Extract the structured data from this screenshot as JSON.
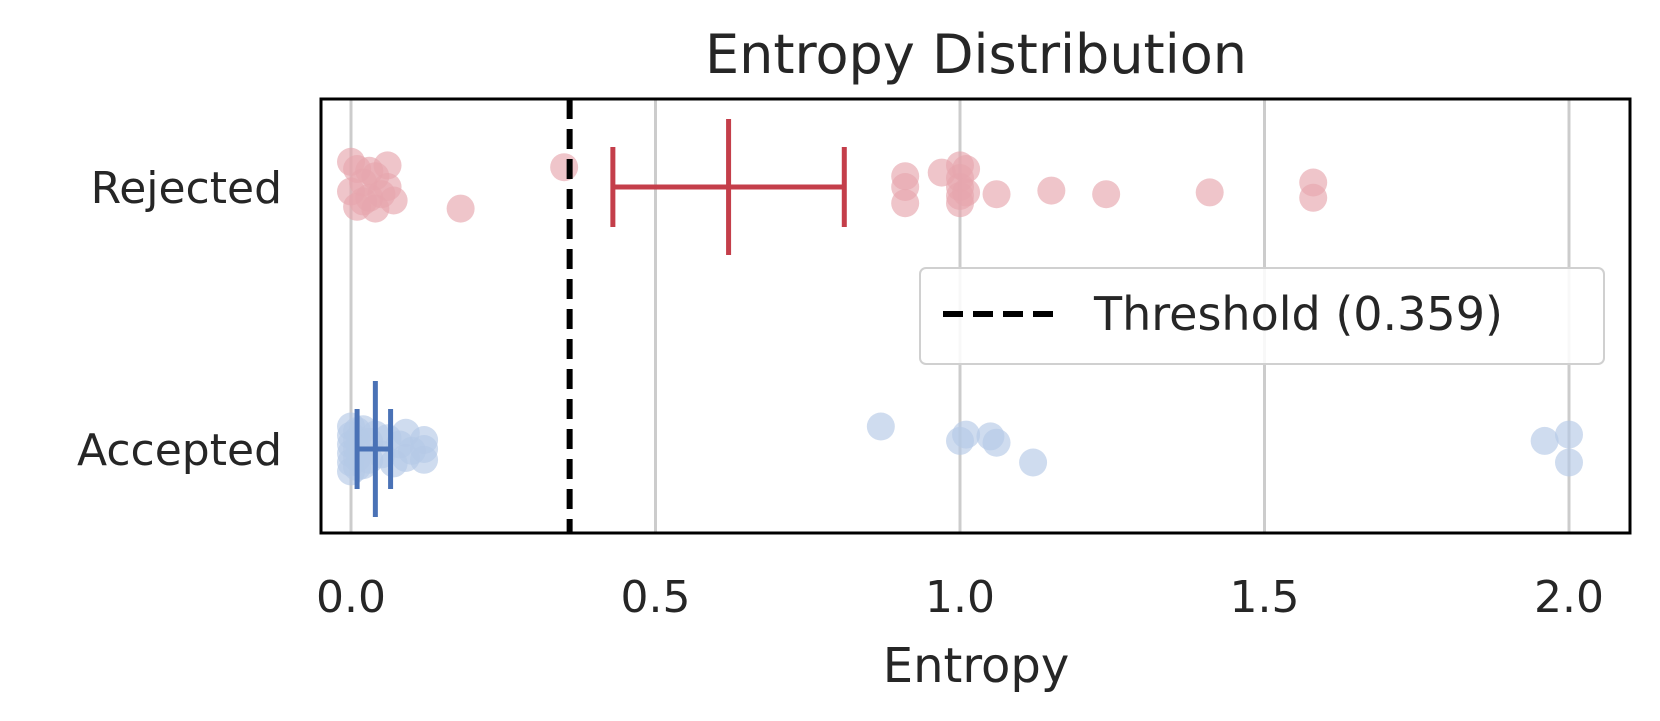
{
  "chart_data": {
    "type": "scatter",
    "title": "Entropy Distribution",
    "xlabel": "Entropy",
    "ylabel": "",
    "xlim": [
      -0.05,
      2.1
    ],
    "xticks": [
      "0.0",
      "0.5",
      "1.0",
      "1.5",
      "2.0"
    ],
    "xtick_values": [
      0.0,
      0.5,
      1.0,
      1.5,
      2.0
    ],
    "categories": [
      "Rejected",
      "Accepted"
    ],
    "grid": "vertical",
    "legend_position": "center-right",
    "threshold": {
      "label": "Threshold (0.359)",
      "value": 0.359,
      "style": "dashed",
      "color": "#000000"
    },
    "series": [
      {
        "name": "Rejected",
        "point_color": "#e6a6ae",
        "error_color": "#c43e4a",
        "mean": 0.62,
        "error_low": 0.43,
        "error_high": 0.81,
        "points": [
          {
            "x": 0.01,
            "j": -0.2
          },
          {
            "x": 0.02,
            "j": -0.05
          },
          {
            "x": 0.0,
            "j": 0.05
          },
          {
            "x": 0.03,
            "j": 0.12
          },
          {
            "x": 0.01,
            "j": 0.22
          },
          {
            "x": 0.04,
            "j": -0.12
          },
          {
            "x": 0.05,
            "j": 0.08
          },
          {
            "x": 0.06,
            "j": 0.0
          },
          {
            "x": 0.02,
            "j": 0.16
          },
          {
            "x": 0.04,
            "j": 0.24
          },
          {
            "x": 0.06,
            "j": -0.24
          },
          {
            "x": 0.0,
            "j": -0.28
          },
          {
            "x": 0.07,
            "j": 0.15
          },
          {
            "x": 0.03,
            "j": -0.18
          },
          {
            "x": 0.18,
            "j": 0.24
          },
          {
            "x": 0.35,
            "j": -0.22
          },
          {
            "x": 0.91,
            "j": -0.12
          },
          {
            "x": 0.91,
            "j": 0.18
          },
          {
            "x": 0.91,
            "j": 0.0
          },
          {
            "x": 0.97,
            "j": -0.16
          },
          {
            "x": 1.0,
            "j": -0.24
          },
          {
            "x": 1.0,
            "j": 0.0
          },
          {
            "x": 1.0,
            "j": 0.18
          },
          {
            "x": 1.0,
            "j": -0.1
          },
          {
            "x": 1.0,
            "j": 0.1
          },
          {
            "x": 1.01,
            "j": -0.2
          },
          {
            "x": 1.01,
            "j": 0.06
          },
          {
            "x": 1.06,
            "j": 0.08
          },
          {
            "x": 1.15,
            "j": 0.04
          },
          {
            "x": 1.24,
            "j": 0.08
          },
          {
            "x": 1.41,
            "j": 0.06
          },
          {
            "x": 1.58,
            "j": -0.05
          },
          {
            "x": 1.58,
            "j": 0.12
          }
        ]
      },
      {
        "name": "Accepted",
        "point_color": "#b6c9e6",
        "error_color": "#4a72b6",
        "mean": 0.04,
        "error_low": 0.01,
        "error_high": 0.065,
        "points": [
          {
            "x": 0.0,
            "j": -0.25
          },
          {
            "x": 0.0,
            "j": -0.15
          },
          {
            "x": 0.0,
            "j": -0.05
          },
          {
            "x": 0.0,
            "j": 0.05
          },
          {
            "x": 0.0,
            "j": 0.15
          },
          {
            "x": 0.0,
            "j": 0.25
          },
          {
            "x": 0.01,
            "j": -0.2
          },
          {
            "x": 0.01,
            "j": -0.1
          },
          {
            "x": 0.01,
            "j": 0.0
          },
          {
            "x": 0.01,
            "j": 0.1
          },
          {
            "x": 0.01,
            "j": 0.2
          },
          {
            "x": 0.02,
            "j": -0.22
          },
          {
            "x": 0.02,
            "j": 0.18
          },
          {
            "x": 0.03,
            "j": -0.08
          },
          {
            "x": 0.03,
            "j": 0.12
          },
          {
            "x": 0.04,
            "j": -0.16
          },
          {
            "x": 0.05,
            "j": 0.06
          },
          {
            "x": 0.06,
            "j": -0.12
          },
          {
            "x": 0.07,
            "j": 0.16
          },
          {
            "x": 0.08,
            "j": -0.05
          },
          {
            "x": 0.09,
            "j": 0.1
          },
          {
            "x": 0.09,
            "j": -0.18
          },
          {
            "x": 0.1,
            "j": 0.02
          },
          {
            "x": 0.12,
            "j": -0.1
          },
          {
            "x": 0.12,
            "j": 0.12
          },
          {
            "x": 0.12,
            "j": 0.0
          },
          {
            "x": 0.87,
            "j": -0.25
          },
          {
            "x": 1.0,
            "j": -0.09
          },
          {
            "x": 1.01,
            "j": -0.16
          },
          {
            "x": 1.05,
            "j": -0.14
          },
          {
            "x": 1.06,
            "j": -0.07
          },
          {
            "x": 1.12,
            "j": 0.15
          },
          {
            "x": 1.96,
            "j": -0.09
          },
          {
            "x": 2.0,
            "j": -0.16
          },
          {
            "x": 2.0,
            "j": 0.15
          }
        ]
      }
    ]
  }
}
